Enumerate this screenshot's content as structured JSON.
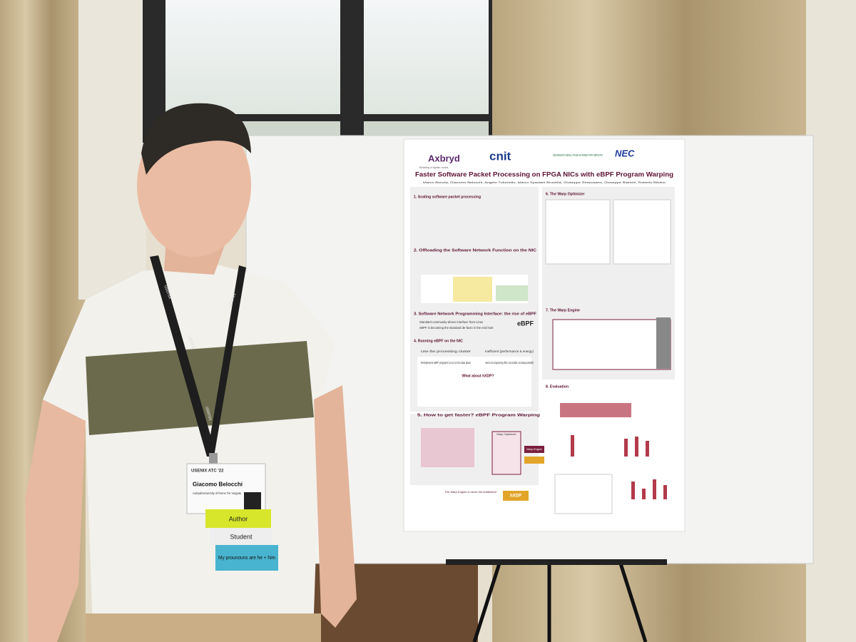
{
  "poster": {
    "logos": [
      "Axbryd",
      "cnit",
      "UNIVERSITÀ DEGLI STUDI DI ROMA TOR VERGATA",
      "NEC"
    ],
    "tagline": "Building a lighter world",
    "title": "Faster Software Packet Processing on FPGA NICs with eBPF Program Warping",
    "authors": "Marco Bonola, Giacomo Belocchi, Angelo Tulumello, Marco Spaziani Brunella, Giuseppe Siracusano, Giuseppe Bianchi, Roberto Bifulco",
    "sections": [
      "1. Scaling software packet processing",
      "2. Offloading the Software Network Function on the NIC",
      "3. Software Network Programming Interface: the rise of eBPF",
      "4. Running eBPF on the NIC",
      "5. How to get faster? eBPF Program Warping",
      "6. The Warp Optimizer",
      "7. The Warp Engine",
      "8. Evaluation"
    ],
    "ebpf_bullets": [
      "Standard community-driven interface from Linux",
      "eBPF is becoming the standard de-facto in the end host"
    ],
    "running_rows": [
      "Use the processing cluster",
      "Reimplement eBPF programs to run on the data plane"
    ],
    "running_results": [
      "Inefficient (performance & energy)",
      "Hard to do (engineering effort, not portable, not always possible)"
    ],
    "hxdp_question": "What about hXDP?",
    "warp_labels": [
      "Warp Optimizer",
      "Warp Engine",
      "hXDP"
    ],
    "warp_note": "The Warp Engine is never the bottleneck!",
    "ebpf_logo": "eBPF"
  },
  "badge": {
    "event": "USENIX ATC '22",
    "name": "Giacomo Belocchi",
    "affiliation": "Axbryd/University of Rome Tor Vergata",
    "ribbons": [
      "Author",
      "Student",
      "My prounouns are he + him"
    ]
  },
  "lanyard": "usenix"
}
